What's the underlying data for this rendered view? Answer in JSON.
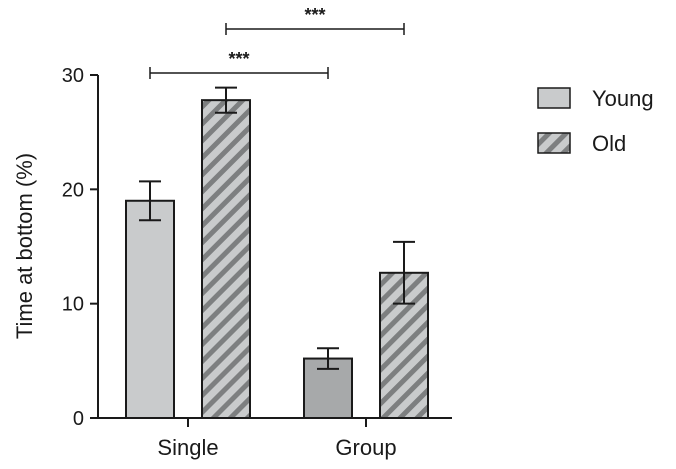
{
  "chart_data": {
    "type": "bar",
    "categories": [
      "Single",
      "Group"
    ],
    "series": [
      {
        "name": "Young",
        "values": [
          19.0,
          5.2
        ],
        "errors": [
          1.7,
          0.9
        ],
        "fill": "#c9cbcc",
        "pattern": "solid"
      },
      {
        "name": "Old",
        "values": [
          27.8,
          12.7
        ],
        "errors": [
          1.1,
          2.7
        ],
        "fill": "#c9cbcc",
        "pattern": "diagonal-stripes",
        "stripe_color": "#7d7f80"
      }
    ],
    "group_fill_override": {
      "Group": {
        "Young": "#a7a9aa"
      }
    },
    "ylabel": "Time at bottom (%)",
    "xlabel": "",
    "ylim": [
      0,
      30
    ],
    "yticks": [
      0,
      10,
      20,
      30
    ],
    "grid": false,
    "legend_position": "right",
    "significance": [
      {
        "label": "***",
        "from": "Single/Young",
        "to": "Group/Young"
      },
      {
        "label": "***",
        "from": "Single/Old",
        "to": "Group/Old"
      }
    ]
  }
}
